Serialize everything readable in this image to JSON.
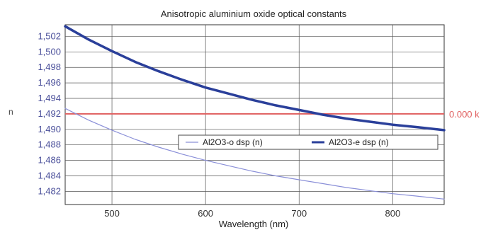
{
  "chart_data": {
    "type": "line",
    "title": "Anisotropic aluminium oxide optical constants",
    "xlabel": "Wavelength (nm)",
    "ylabel": "n",
    "xlim": [
      450,
      855
    ],
    "ylim": [
      1.4803,
      1.5035
    ],
    "x_ticks": [
      500,
      600,
      700,
      800
    ],
    "y_ticks": [
      1.482,
      1.484,
      1.486,
      1.488,
      1.49,
      1.492,
      1.494,
      1.496,
      1.498,
      1.5,
      1.502
    ],
    "y_tick_labels": [
      "1,482",
      "1,484",
      "1,486",
      "1,488",
      "1,490",
      "1,492",
      "1,494",
      "1,496",
      "1,498",
      "1,500",
      "1,502"
    ],
    "x_tick_labels": [
      "500",
      "600",
      "700",
      "800"
    ],
    "grid": true,
    "legend_placement": "center-right",
    "series": [
      {
        "name": "Al2O3-o dsp (n)",
        "color": "#8a8fd8",
        "style": "thin",
        "x": [
          450,
          475,
          500,
          525,
          550,
          575,
          600,
          625,
          650,
          675,
          700,
          725,
          750,
          775,
          800,
          825,
          855
        ],
        "y": [
          1.4927,
          1.4912,
          1.4899,
          1.4887,
          1.4877,
          1.4868,
          1.486,
          1.4853,
          1.4846,
          1.484,
          1.4835,
          1.483,
          1.4825,
          1.4821,
          1.4817,
          1.4814,
          1.481
        ]
      },
      {
        "name": "Al2O3-e dsp (n)",
        "color": "#2a3f9a",
        "style": "thick",
        "x": [
          450,
          475,
          500,
          525,
          550,
          575,
          600,
          625,
          650,
          675,
          700,
          725,
          750,
          775,
          800,
          825,
          855
        ],
        "y": [
          1.5033,
          1.5016,
          1.5001,
          1.4987,
          1.4975,
          1.4964,
          1.4954,
          1.4946,
          1.4938,
          1.4931,
          1.4925,
          1.4919,
          1.4914,
          1.491,
          1.4906,
          1.4903,
          1.4899
        ]
      }
    ],
    "reference_line": {
      "y": 1.492,
      "color": "#e06060",
      "label": "0.000 k"
    }
  }
}
